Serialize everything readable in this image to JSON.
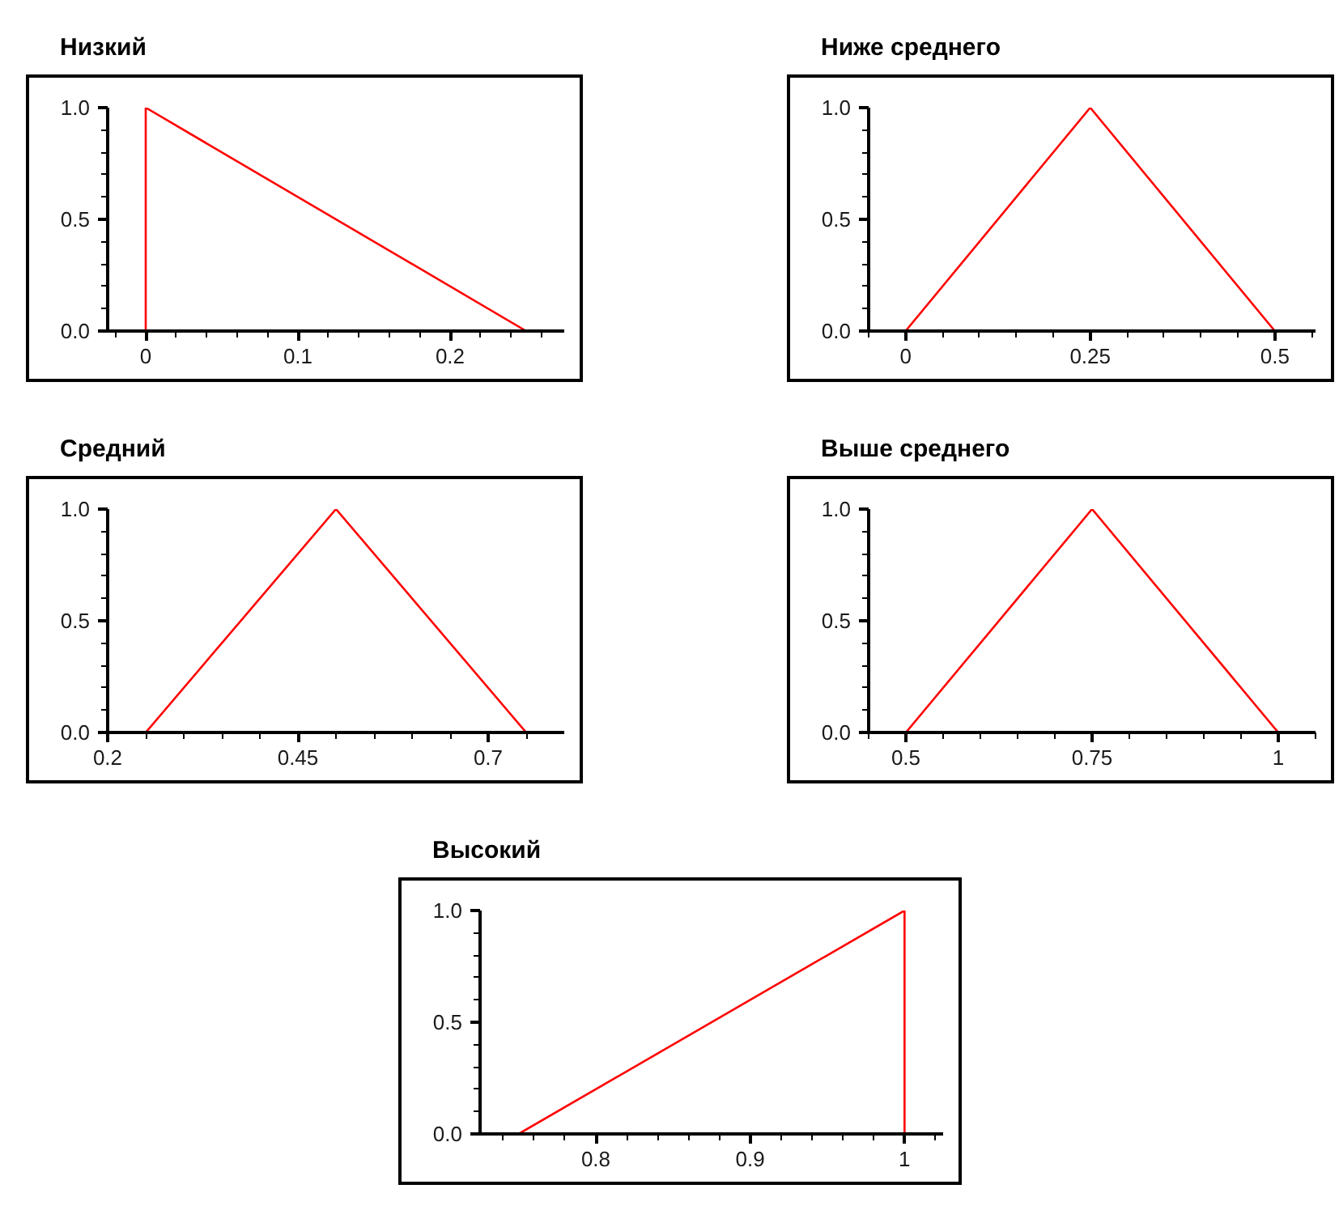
{
  "chart_data": [
    {
      "type": "line",
      "title": "Низкий",
      "xlim": [
        -0.025,
        0.275
      ],
      "ylim": [
        0,
        1
      ],
      "xticks": [
        {
          "value": -0.02,
          "label": null
        },
        0,
        {
          "value": 0.02,
          "label": null
        },
        {
          "value": 0.04,
          "label": null
        },
        {
          "value": 0.06,
          "label": null
        },
        {
          "value": 0.08,
          "label": null
        },
        0.1,
        {
          "value": 0.12,
          "label": null
        },
        {
          "value": 0.14,
          "label": null
        },
        {
          "value": 0.16,
          "label": null
        },
        {
          "value": 0.18,
          "label": null
        },
        0.2,
        {
          "value": 0.22,
          "label": null
        },
        {
          "value": 0.24,
          "label": null
        },
        {
          "value": 0.26,
          "label": null
        }
      ],
      "yticks": [
        {
          "value": 0,
          "label": "0.0"
        },
        {
          "value": 0.1,
          "label": null
        },
        {
          "value": 0.2,
          "label": null
        },
        {
          "value": 0.3,
          "label": null
        },
        {
          "value": 0.4,
          "label": null
        },
        {
          "value": 0.5,
          "label": "0.5"
        },
        {
          "value": 0.6,
          "label": null
        },
        {
          "value": 0.7,
          "label": null
        },
        {
          "value": 0.8,
          "label": null
        },
        {
          "value": 0.9,
          "label": null
        },
        {
          "value": 1,
          "label": "1.0"
        }
      ],
      "series": [
        {
          "color": "#ff0000",
          "x": [
            0,
            0,
            0.25
          ],
          "values": [
            0,
            1,
            0
          ]
        }
      ]
    },
    {
      "type": "line",
      "title": "Ниже среднего",
      "xlim": [
        -0.05,
        0.555
      ],
      "ylim": [
        0,
        1
      ],
      "xticks": [
        {
          "value": -0.05,
          "label": null
        },
        0,
        {
          "value": 0.05,
          "label": null
        },
        {
          "value": 0.1,
          "label": null
        },
        {
          "value": 0.15,
          "label": null
        },
        {
          "value": 0.2,
          "label": null
        },
        0.25,
        {
          "value": 0.3,
          "label": null
        },
        {
          "value": 0.35,
          "label": null
        },
        {
          "value": 0.4,
          "label": null
        },
        {
          "value": 0.45,
          "label": null
        },
        0.5,
        {
          "value": 0.55,
          "label": null
        }
      ],
      "yticks": [
        {
          "value": 0,
          "label": "0.0"
        },
        {
          "value": 0.1,
          "label": null
        },
        {
          "value": 0.2,
          "label": null
        },
        {
          "value": 0.3,
          "label": null
        },
        {
          "value": 0.4,
          "label": null
        },
        {
          "value": 0.5,
          "label": "0.5"
        },
        {
          "value": 0.6,
          "label": null
        },
        {
          "value": 0.7,
          "label": null
        },
        {
          "value": 0.8,
          "label": null
        },
        {
          "value": 0.9,
          "label": null
        },
        {
          "value": 1,
          "label": "1.0"
        }
      ],
      "series": [
        {
          "color": "#ff0000",
          "x": [
            0,
            0.25,
            0.5
          ],
          "values": [
            0,
            1,
            0
          ]
        }
      ]
    },
    {
      "type": "line",
      "title": "Средний",
      "xlim": [
        0.2,
        0.8
      ],
      "ylim": [
        0,
        1
      ],
      "xticks": [
        0.2,
        {
          "value": 0.25,
          "label": null
        },
        {
          "value": 0.3,
          "label": null
        },
        {
          "value": 0.35,
          "label": null
        },
        {
          "value": 0.4,
          "label": null
        },
        0.45,
        {
          "value": 0.5,
          "label": null
        },
        {
          "value": 0.55,
          "label": null
        },
        {
          "value": 0.6,
          "label": null
        },
        {
          "value": 0.65,
          "label": null
        },
        0.7,
        {
          "value": 0.75,
          "label": null
        }
      ],
      "yticks": [
        {
          "value": 0,
          "label": "0.0"
        },
        {
          "value": 0.1,
          "label": null
        },
        {
          "value": 0.2,
          "label": null
        },
        {
          "value": 0.3,
          "label": null
        },
        {
          "value": 0.4,
          "label": null
        },
        {
          "value": 0.5,
          "label": "0.5"
        },
        {
          "value": 0.6,
          "label": null
        },
        {
          "value": 0.7,
          "label": null
        },
        {
          "value": 0.8,
          "label": null
        },
        {
          "value": 0.9,
          "label": null
        },
        {
          "value": 1,
          "label": "1.0"
        }
      ],
      "series": [
        {
          "color": "#ff0000",
          "x": [
            0.25,
            0.5,
            0.75
          ],
          "values": [
            0,
            1,
            0
          ]
        }
      ]
    },
    {
      "type": "line",
      "title": "Выше среднего",
      "xlim": [
        0.45,
        1.05
      ],
      "ylim": [
        0,
        1
      ],
      "xticks": [
        {
          "value": 0.45,
          "label": null
        },
        0.5,
        {
          "value": 0.55,
          "label": null
        },
        {
          "value": 0.6,
          "label": null
        },
        {
          "value": 0.65,
          "label": null
        },
        {
          "value": 0.7,
          "label": null
        },
        0.75,
        {
          "value": 0.8,
          "label": null
        },
        {
          "value": 0.85,
          "label": null
        },
        {
          "value": 0.9,
          "label": null
        },
        {
          "value": 0.95,
          "label": null
        },
        1,
        {
          "value": 1.05,
          "label": null
        }
      ],
      "yticks": [
        {
          "value": 0,
          "label": "0.0"
        },
        {
          "value": 0.1,
          "label": null
        },
        {
          "value": 0.2,
          "label": null
        },
        {
          "value": 0.3,
          "label": null
        },
        {
          "value": 0.4,
          "label": null
        },
        {
          "value": 0.5,
          "label": "0.5"
        },
        {
          "value": 0.6,
          "label": null
        },
        {
          "value": 0.7,
          "label": null
        },
        {
          "value": 0.8,
          "label": null
        },
        {
          "value": 0.9,
          "label": null
        },
        {
          "value": 1,
          "label": "1.0"
        }
      ],
      "series": [
        {
          "color": "#ff0000",
          "x": [
            0.5,
            0.75,
            1
          ],
          "values": [
            0,
            1,
            0
          ]
        }
      ]
    },
    {
      "type": "line",
      "title": "Высокий",
      "xlim": [
        0.725,
        1.025
      ],
      "ylim": [
        0,
        1
      ],
      "xticks": [
        {
          "value": 0.74,
          "label": null
        },
        {
          "value": 0.76,
          "label": null
        },
        {
          "value": 0.78,
          "label": null
        },
        0.8,
        {
          "value": 0.82,
          "label": null
        },
        {
          "value": 0.84,
          "label": null
        },
        {
          "value": 0.86,
          "label": null
        },
        {
          "value": 0.88,
          "label": null
        },
        0.9,
        {
          "value": 0.92,
          "label": null
        },
        {
          "value": 0.94,
          "label": null
        },
        {
          "value": 0.96,
          "label": null
        },
        {
          "value": 0.98,
          "label": null
        },
        1,
        {
          "value": 1.02,
          "label": null
        }
      ],
      "yticks": [
        {
          "value": 0,
          "label": "0.0"
        },
        {
          "value": 0.1,
          "label": null
        },
        {
          "value": 0.2,
          "label": null
        },
        {
          "value": 0.3,
          "label": null
        },
        {
          "value": 0.4,
          "label": null
        },
        {
          "value": 0.5,
          "label": "0.5"
        },
        {
          "value": 0.6,
          "label": null
        },
        {
          "value": 0.7,
          "label": null
        },
        {
          "value": 0.8,
          "label": null
        },
        {
          "value": 0.9,
          "label": null
        },
        {
          "value": 1,
          "label": "1.0"
        }
      ],
      "series": [
        {
          "color": "#ff0000",
          "x": [
            0.75,
            1,
            1
          ],
          "values": [
            0,
            1,
            0
          ]
        }
      ]
    }
  ]
}
